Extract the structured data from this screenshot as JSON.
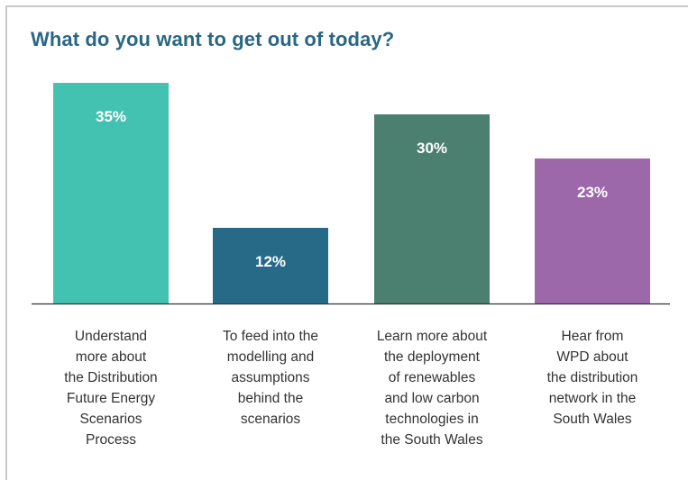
{
  "chart_data": {
    "type": "bar",
    "title": "What do you want to get out of today?",
    "categories": [
      "Understand more about the Distribution Future Energy Scenarios Process",
      "To feed into the modelling and assumptions behind the scenarios",
      "Learn more about the deployment of renewables and low carbon technologies in the South Wales",
      "Hear from WPD about the distribution network in the South Wales"
    ],
    "category_lines": [
      [
        "Understand",
        "more about",
        "the Distribution",
        "Future Energy",
        "Scenarios",
        "Process"
      ],
      [
        "To feed into the",
        "modelling and",
        "assumptions",
        "behind the",
        "scenarios"
      ],
      [
        "Learn more about",
        "the deployment",
        "of renewables",
        "and low carbon",
        "technologies in",
        "the South Wales"
      ],
      [
        "Hear from",
        "WPD about",
        "the distribution",
        "network in the",
        "South Wales"
      ]
    ],
    "values": [
      35,
      12,
      30,
      23
    ],
    "value_labels": [
      "35%",
      "12%",
      "30%",
      "23%"
    ],
    "colors": [
      "#44c2b1",
      "#266a88",
      "#4b7f70",
      "#9c68aa"
    ],
    "ylim": [
      0,
      35
    ],
    "xlabel": "",
    "ylabel": "",
    "grid": false,
    "legend": "none"
  }
}
